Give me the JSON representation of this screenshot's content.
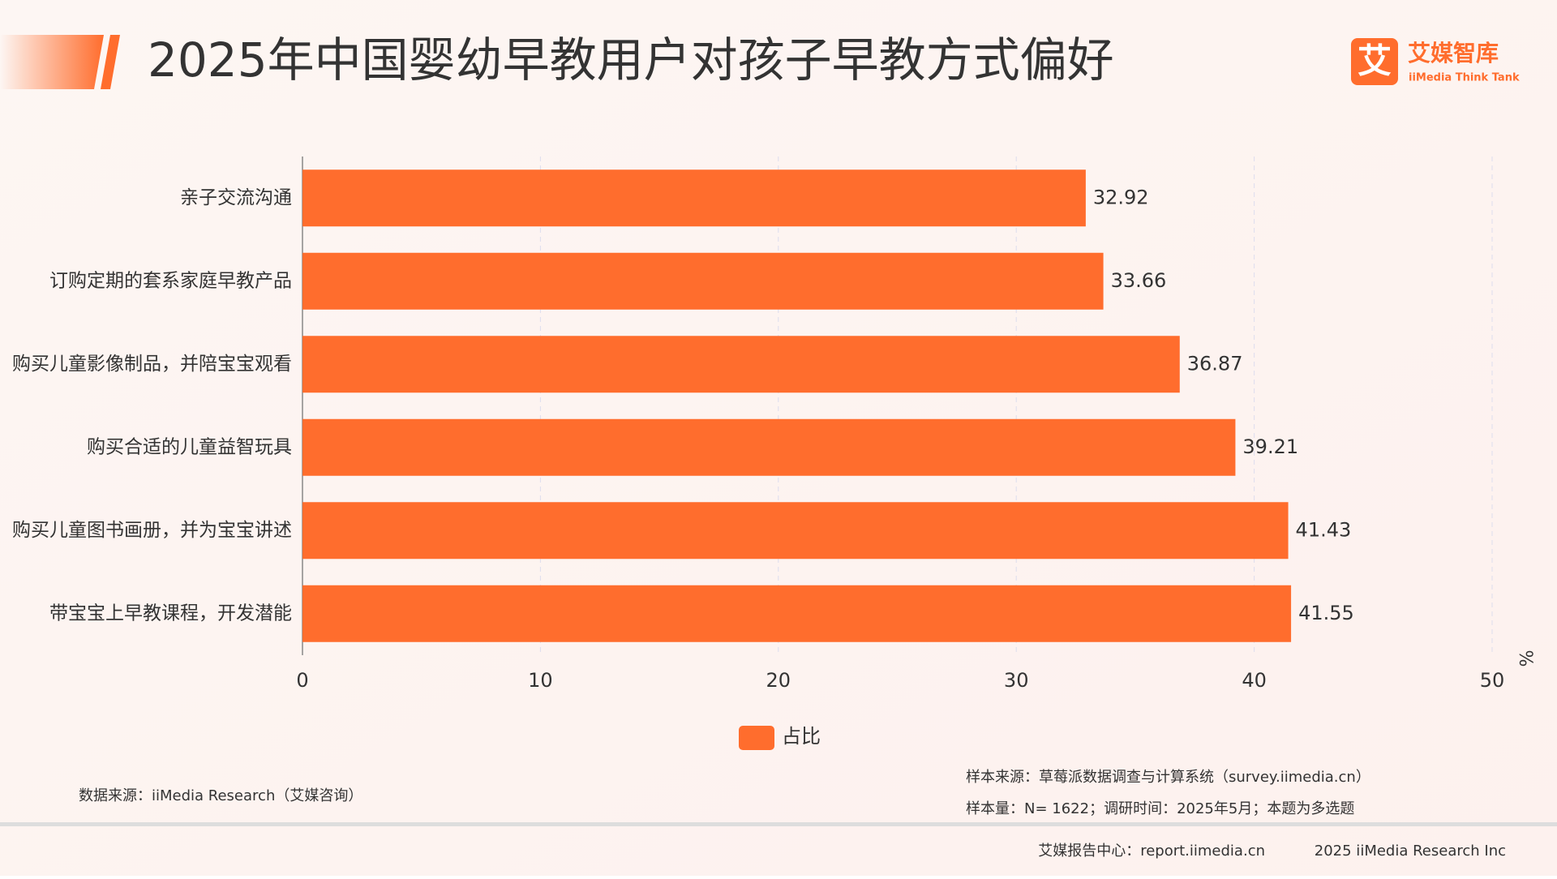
{
  "chart_data": {
    "type": "bar",
    "orientation": "horizontal",
    "title": "2025年中国婴幼早教用户对孩子早教方式偏好",
    "categories": [
      "亲子交流沟通",
      "订购定期的套系家庭早教产品",
      "购买儿童影像制品，并陪宝宝观看",
      "购买合适的儿童益智玩具",
      "购买儿童图书画册，并为宝宝讲述",
      "带宝宝上早教课程，开发潜能"
    ],
    "series": [
      {
        "name": "占比",
        "color": "#ff6d2d",
        "values": [
          32.92,
          33.66,
          36.87,
          39.21,
          41.43,
          41.55
        ]
      }
    ],
    "xlim": [
      0,
      50
    ],
    "xticks": [
      0,
      10,
      20,
      30,
      40,
      50
    ],
    "x_label": "%",
    "grid": true
  },
  "logo": {
    "icon": "艾",
    "name": "艾媒智库",
    "subtitle": "iiMedia Think Tank"
  },
  "notes": {
    "data_source": "数据来源：iiMedia Research（艾媒咨询）",
    "sample_source": "样本来源：草莓派数据调查与计算系统（survey.iimedia.cn）",
    "sample_size": "样本量：N= 1622；调研时间：2025年5月；本题为多选题"
  },
  "footer": {
    "center": "艾媒报告中心：report.iimedia.cn",
    "copyright": "2025 iiMedia Research Inc"
  }
}
